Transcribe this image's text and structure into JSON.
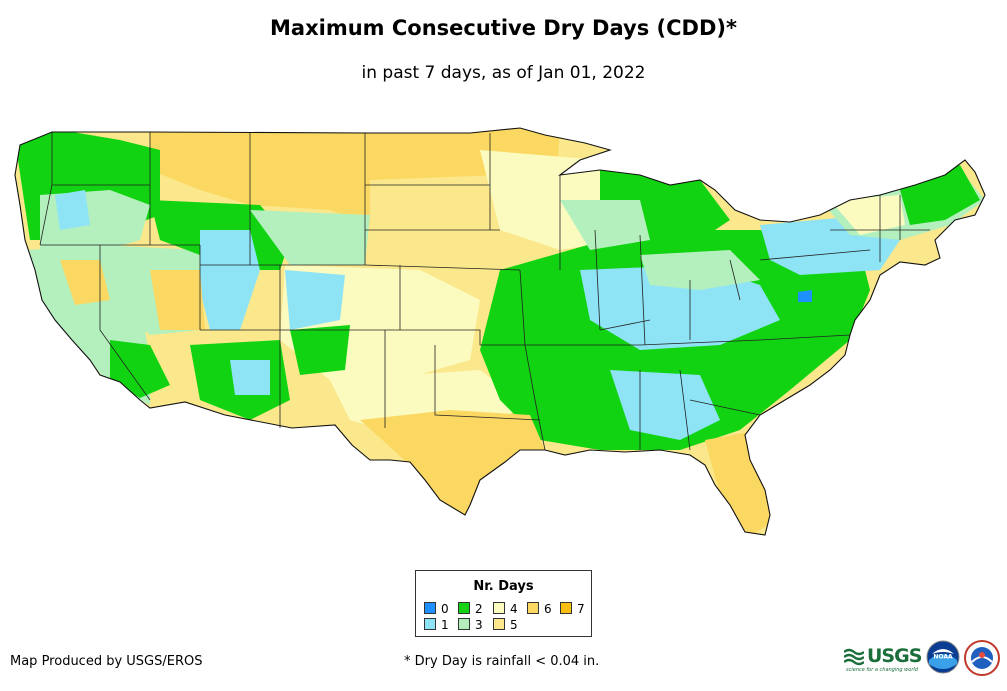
{
  "title": "Maximum Consecutive Dry Days (CDD)*",
  "subtitle": "in past 7 days, as of Jan 01, 2022",
  "legend": {
    "title": "Nr. Days",
    "items": [
      {
        "label": "0",
        "color": "#1e90ff"
      },
      {
        "label": "1",
        "color": "#8ee3f5"
      },
      {
        "label": "2",
        "color": "#11d311"
      },
      {
        "label": "3",
        "color": "#b4f0be"
      },
      {
        "label": "4",
        "color": "#fbfbc0"
      },
      {
        "label": "5",
        "color": "#fbe88c"
      },
      {
        "label": "6",
        "color": "#fbd862"
      },
      {
        "label": "7",
        "color": "#fbbe14"
      }
    ]
  },
  "footer": {
    "credit": "Map Produced by USGS/EROS",
    "note": "* Dry Day is rainfall < 0.04 in."
  },
  "logos": {
    "usgs": "USGS",
    "usgs_tagline": "science for a changing world",
    "noaa": "NOAA"
  }
}
